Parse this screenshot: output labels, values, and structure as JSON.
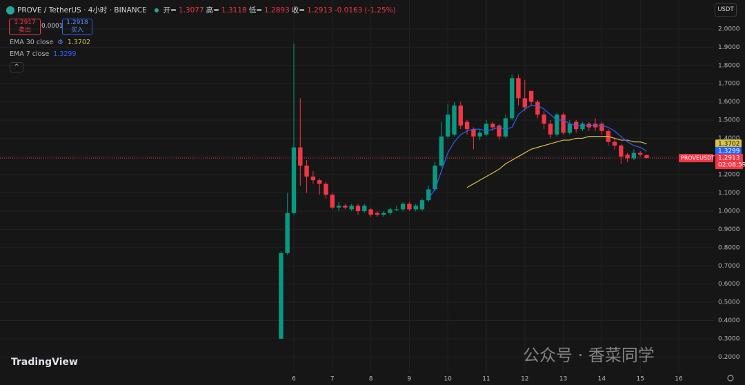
{
  "header": {
    "title": "PROVE / TetherUS · 4小时 · BINANCE",
    "ohlc_labels": [
      "开=",
      "高=",
      "低=",
      "收="
    ],
    "change": "-0.0163",
    "change_pct": "(-1.25%)",
    "sell_price": "1.2917",
    "sell_label": "卖出",
    "spread": "0.0001",
    "buy_price": "1.2918",
    "buy_label": "买入",
    "currency": "USDT",
    "brand": "TradingView",
    "watermark": "公众号 · 香菜同学"
  },
  "chart_data": {
    "type": "candlestick",
    "up_color": "#089981",
    "down_color": "#f23645",
    "grid": true,
    "symbol_label": "PROVEUSDT",
    "countdown": "02:08:59",
    "xlim": [
      -1.634,
      16.914
    ],
    "xticks": [
      6,
      7,
      8,
      9,
      10,
      11,
      12,
      13,
      14,
      15,
      16
    ],
    "ylim": [
      0.114,
      2.159
    ],
    "yticks": [
      {
        "value": 2,
        "label": "2.0000"
      },
      {
        "value": 1.9,
        "label": "1.9000"
      },
      {
        "value": 1.8,
        "label": "1.8000"
      },
      {
        "value": 1.7,
        "label": "1.7000"
      },
      {
        "value": 1.6,
        "label": "1.6000"
      },
      {
        "value": 1.5,
        "label": "1.5000"
      },
      {
        "value": 1.4,
        "label": "1.4000"
      },
      {
        "value": 1.3,
        "label": "1.3000"
      },
      {
        "value": 1.2,
        "label": "1.2000"
      },
      {
        "value": 1.1,
        "label": "1.1000"
      },
      {
        "value": 1,
        "label": "1.0000"
      },
      {
        "value": 0.9,
        "label": "0.9000"
      },
      {
        "value": 0.8,
        "label": "0.8000"
      },
      {
        "value": 0.7,
        "label": "0.7000"
      },
      {
        "value": 0.6,
        "label": "0.6000"
      },
      {
        "value": 0.5,
        "label": "0.5000"
      },
      {
        "value": 0.4,
        "label": "0.4000"
      },
      {
        "value": 0.3,
        "label": "0.3000"
      },
      {
        "value": 0.2,
        "label": "0.2000"
      }
    ],
    "x": [
      5.667,
      5.833,
      6,
      6.167,
      6.333,
      6.5,
      6.667,
      6.833,
      7,
      7.167,
      7.333,
      7.5,
      7.667,
      7.833,
      8,
      8.167,
      8.333,
      8.5,
      8.667,
      8.833,
      9,
      9.167,
      9.333,
      9.5,
      9.667,
      9.833,
      10,
      10.167,
      10.333,
      10.5,
      10.667,
      10.833,
      11,
      11.167,
      11.333,
      11.5,
      11.667,
      11.833,
      12,
      12.167,
      12.333,
      12.5,
      12.667,
      12.833,
      13,
      13.167,
      13.333,
      13.5,
      13.667,
      13.833,
      14,
      14.167,
      14.333,
      14.5,
      14.667,
      14.833,
      15,
      15.167
    ],
    "open": [
      0.3,
      0.77,
      0.99,
      1.35,
      1.25,
      1.19,
      1.17,
      1.15,
      1.09,
      1.02,
      1.03,
      1.01,
      1.03,
      1.0,
      1.01,
      0.99,
      0.98,
      0.99,
      1.01,
      1.01,
      1.04,
      1.01,
      1.01,
      1.06,
      1.12,
      1.25,
      1.41,
      1.42,
      1.58,
      1.49,
      1.45,
      1.41,
      1.42,
      1.48,
      1.47,
      1.41,
      1.51,
      1.73,
      1.62,
      1.66,
      1.6,
      1.53,
      1.48,
      1.42,
      1.53,
      1.43,
      1.49,
      1.45,
      1.48,
      1.48,
      1.48,
      1.44,
      1.38,
      1.36,
      1.31,
      1.29,
      1.32,
      1.3077
    ],
    "high": [
      0.78,
      1.1,
      1.92,
      1.62,
      1.28,
      1.22,
      1.18,
      1.16,
      1.1,
      1.05,
      1.04,
      1.04,
      1.04,
      1.04,
      1.02,
      1.0,
      1.0,
      1.02,
      1.03,
      1.05,
      1.05,
      1.04,
      1.07,
      1.14,
      1.27,
      1.49,
      1.59,
      1.6,
      1.6,
      1.5,
      1.46,
      1.45,
      1.5,
      1.49,
      1.48,
      1.53,
      1.75,
      1.75,
      1.72,
      1.66,
      1.61,
      1.55,
      1.5,
      1.54,
      1.54,
      1.5,
      1.5,
      1.49,
      1.49,
      1.51,
      1.49,
      1.45,
      1.4,
      1.37,
      1.32,
      1.34,
      1.33,
      1.3118
    ],
    "low": [
      0.3,
      0.76,
      0.98,
      1.14,
      1.1,
      1.15,
      1.09,
      1.07,
      1.01,
      1.0,
      1.01,
      1.0,
      0.98,
      0.99,
      0.97,
      0.97,
      0.97,
      0.98,
      1.0,
      1.0,
      1.0,
      1.0,
      1.0,
      1.05,
      1.11,
      1.24,
      1.4,
      1.41,
      1.45,
      1.42,
      1.34,
      1.39,
      1.41,
      1.44,
      1.39,
      1.4,
      1.5,
      1.58,
      1.55,
      1.58,
      1.51,
      1.45,
      1.4,
      1.41,
      1.42,
      1.42,
      1.43,
      1.44,
      1.44,
      1.44,
      1.42,
      1.36,
      1.34,
      1.26,
      1.27,
      1.28,
      1.3,
      1.2893
    ],
    "close": [
      0.77,
      0.99,
      1.35,
      1.25,
      1.19,
      1.17,
      1.15,
      1.09,
      1.02,
      1.03,
      1.02,
      1.03,
      1.0,
      1.03,
      0.98,
      0.98,
      0.99,
      1.01,
      1.01,
      1.04,
      1.01,
      1.03,
      1.06,
      1.12,
      1.25,
      1.41,
      1.53,
      1.58,
      1.47,
      1.45,
      1.41,
      1.43,
      1.48,
      1.46,
      1.41,
      1.51,
      1.73,
      1.62,
      1.57,
      1.6,
      1.53,
      1.48,
      1.42,
      1.53,
      1.43,
      1.48,
      1.45,
      1.48,
      1.46,
      1.46,
      1.44,
      1.38,
      1.36,
      1.3,
      1.29,
      1.32,
      1.31,
      1.2913
    ],
    "series": [
      {
        "name": "EMA 30 close",
        "color": "#d9c34a",
        "values": [
          null,
          null,
          null,
          null,
          null,
          null,
          null,
          null,
          null,
          null,
          null,
          null,
          null,
          null,
          null,
          null,
          null,
          null,
          null,
          null,
          null,
          null,
          null,
          null,
          null,
          null,
          null,
          null,
          null,
          1.13,
          1.15,
          1.17,
          1.19,
          1.21,
          1.23,
          1.26,
          1.28,
          1.3,
          1.32,
          1.34,
          1.35,
          1.36,
          1.37,
          1.38,
          1.39,
          1.39,
          1.4,
          1.4,
          1.41,
          1.41,
          1.41,
          1.41,
          1.4,
          1.39,
          1.39,
          1.38,
          1.38,
          1.3702
        ]
      },
      {
        "name": "EMA 7 close",
        "color": "#2962ff",
        "values": [
          null,
          null,
          null,
          null,
          null,
          null,
          null,
          null,
          null,
          null,
          null,
          null,
          null,
          null,
          null,
          null,
          null,
          null,
          null,
          null,
          null,
          null,
          null,
          1.07,
          1.12,
          1.22,
          1.32,
          1.38,
          1.42,
          1.44,
          1.45,
          1.45,
          1.44,
          1.45,
          1.46,
          1.45,
          1.46,
          1.53,
          1.56,
          1.58,
          1.58,
          1.56,
          1.53,
          1.5,
          1.5,
          1.48,
          1.47,
          1.47,
          1.47,
          1.47,
          1.47,
          1.46,
          1.44,
          1.41,
          1.38,
          1.36,
          1.35,
          1.3299
        ]
      }
    ]
  }
}
